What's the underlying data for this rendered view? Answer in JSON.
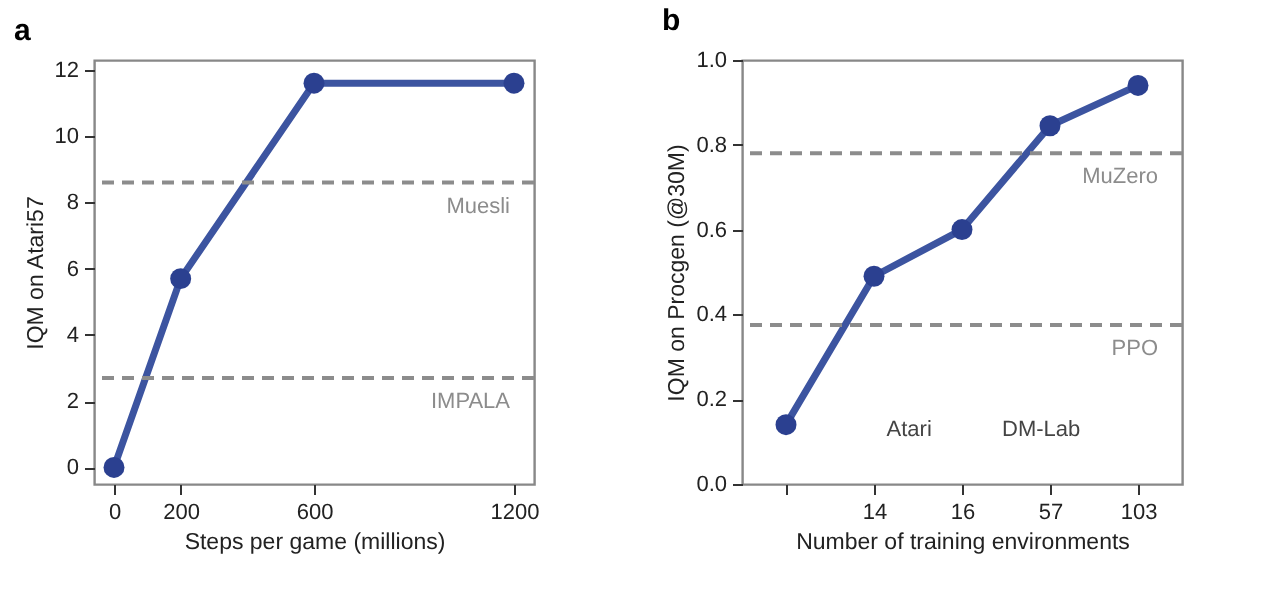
{
  "chart_data": [
    {
      "type": "line",
      "title": "a",
      "xlabel": "Steps per game (millions)",
      "ylabel": "IQM on Atari57",
      "x": [
        0,
        200,
        600,
        1200
      ],
      "series": [
        {
          "color": "#3c54a0",
          "values": [
            0,
            5.7,
            11.6,
            11.6
          ]
        }
      ],
      "xlim": [
        -60,
        1260
      ],
      "xticks": [
        0,
        200,
        600,
        1200
      ],
      "ylim": [
        -0.5,
        12.3
      ],
      "yticks": [
        0,
        2,
        4,
        6,
        8,
        10,
        12
      ],
      "marker": "circle",
      "grid": false,
      "ref_lines": [
        {
          "axis": "y",
          "value": 8.6,
          "label": "Muesli",
          "color": "#8c8c8c",
          "line_style": "dashed"
        },
        {
          "axis": "y",
          "value": 2.7,
          "label": "IMPALA",
          "color": "#8c8c8c",
          "line_style": "dashed"
        }
      ]
    },
    {
      "type": "line",
      "title": "b",
      "xlabel": "Number of training environments",
      "ylabel": "IQM on Procgen (@30M)",
      "categories": [
        null,
        "14",
        "16",
        "57",
        "103"
      ],
      "series": [
        {
          "color": "#3c54a0",
          "values": [
            0.14,
            0.49,
            0.6,
            0.845,
            0.94
          ]
        }
      ],
      "ylim": [
        0,
        1.0
      ],
      "yticks": [
        {
          "value": 0,
          "label": "0.0"
        },
        0.2,
        0.4,
        0.6,
        0.8,
        {
          "value": 1,
          "label": "1.0"
        }
      ],
      "marker": "circle",
      "grid": false,
      "ref_lines": [
        {
          "axis": "y",
          "value": 0.78,
          "label": "MuZero",
          "color": "#8c8c8c",
          "line_style": "dashed"
        },
        {
          "axis": "y",
          "value": 0.375,
          "label": "PPO",
          "color": "#8c8c8c",
          "line_style": "dashed"
        }
      ],
      "annotations": [
        "Atari",
        "DM-Lab"
      ]
    }
  ]
}
